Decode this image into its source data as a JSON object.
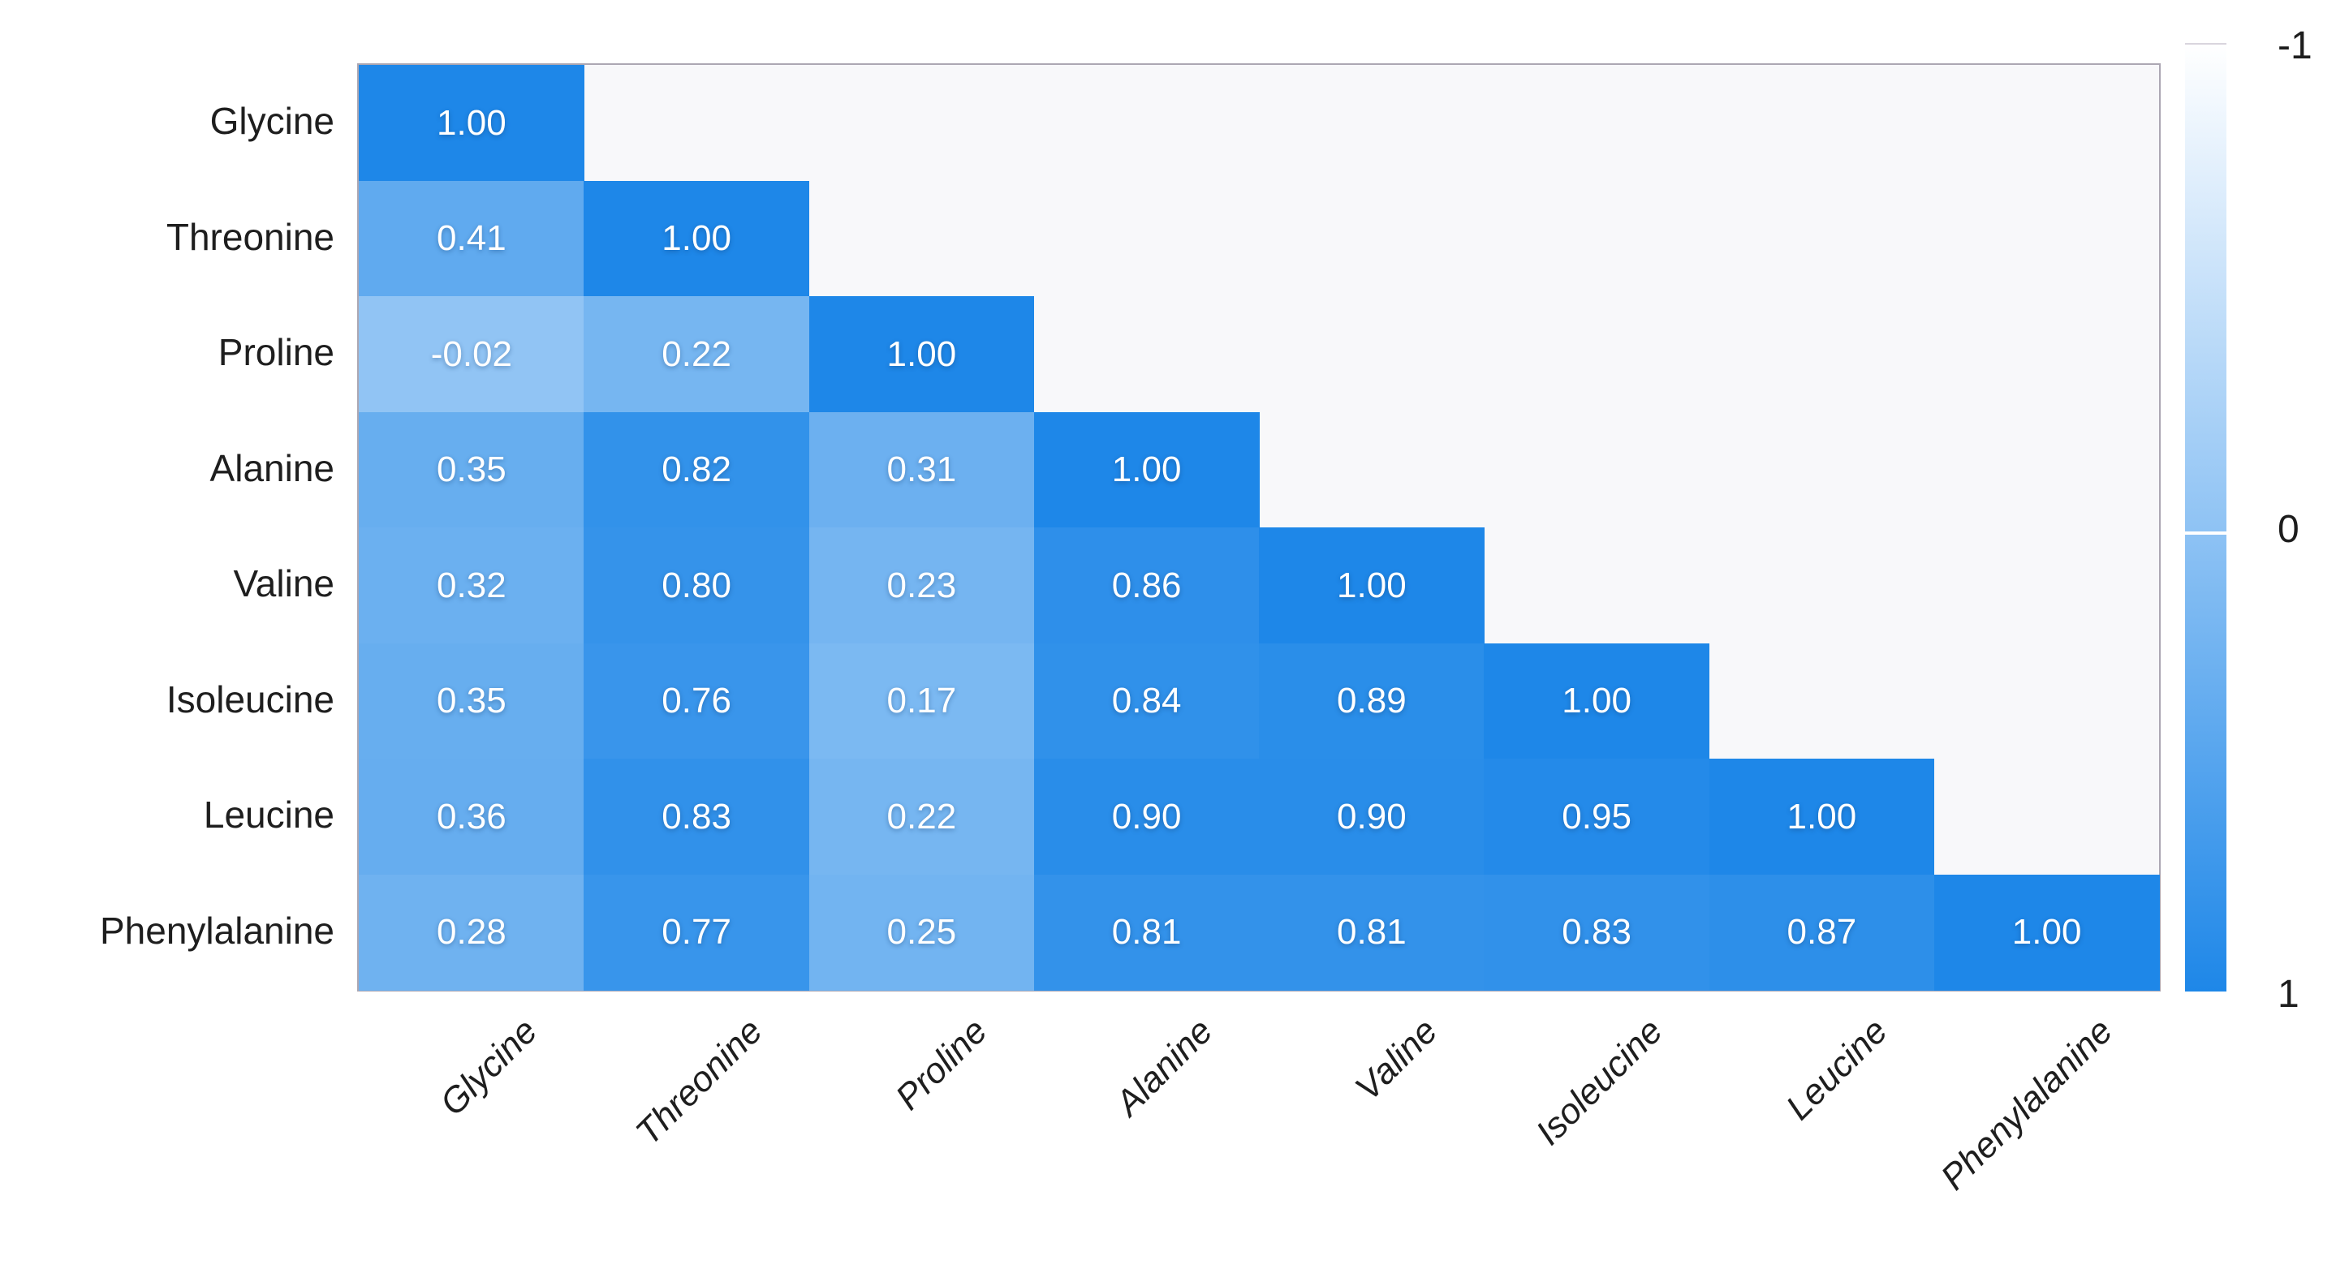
{
  "chart_data": {
    "type": "heatmap",
    "subtype": "correlation-matrix-lower-triangle",
    "title": "",
    "xlabel": "",
    "ylabel": "",
    "categories": [
      "Glycine",
      "Threonine",
      "Proline",
      "Alanine",
      "Valine",
      "Isoleucine",
      "Leucine",
      "Phenylalanine"
    ],
    "matrix": [
      [
        1.0
      ],
      [
        0.41,
        1.0
      ],
      [
        -0.02,
        0.22,
        1.0
      ],
      [
        0.35,
        0.82,
        0.31,
        1.0
      ],
      [
        0.32,
        0.8,
        0.23,
        0.86,
        1.0
      ],
      [
        0.35,
        0.76,
        0.17,
        0.84,
        0.89,
        1.0
      ],
      [
        0.36,
        0.83,
        0.22,
        0.9,
        0.9,
        0.95,
        1.0
      ],
      [
        0.28,
        0.77,
        0.25,
        0.81,
        0.81,
        0.83,
        0.87,
        1.0
      ]
    ],
    "value_decimals": 2,
    "scale": {
      "min": -1,
      "mid": 0,
      "max": 1
    },
    "legend": {
      "position": "right",
      "orientation": "vertical",
      "tick_labels": {
        "min": "-1",
        "mid": "0",
        "max": "1"
      }
    },
    "grid": false,
    "colors": {
      "high": "#1e87e8",
      "low": "#ffffff",
      "empty_area": "#f8f8fa",
      "cell_text": "#ffffff",
      "axis_text": "#1e1e1e",
      "plot_border": "#aca7b3"
    }
  }
}
